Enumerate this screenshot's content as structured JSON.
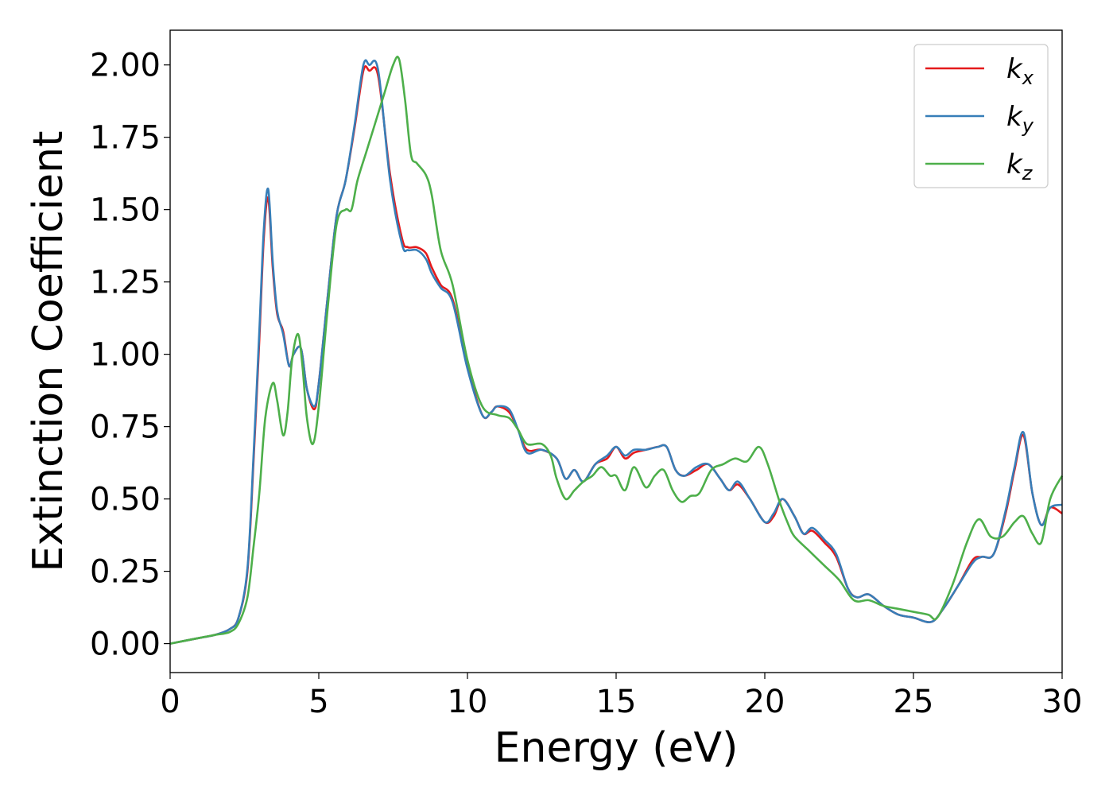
{
  "chart_data": {
    "type": "line",
    "title": "",
    "xlabel": "Energy (eV)",
    "ylabel": "Extinction Coefficient",
    "xlim": [
      0,
      30
    ],
    "ylim": [
      -0.1,
      2.12
    ],
    "xticks": [
      0,
      5,
      10,
      15,
      20,
      25,
      30
    ],
    "yticks": [
      0.0,
      0.25,
      0.5,
      0.75,
      1.0,
      1.25,
      1.5,
      1.75,
      2.0
    ],
    "grid": false,
    "legend_position": "top-right",
    "colors": {
      "kx": "#e41a1c",
      "ky": "#377eb8",
      "kz": "#4daf4a"
    },
    "series": [
      {
        "name": "k_x",
        "label_main": "k",
        "label_sub": "x",
        "x": [
          0,
          1,
          1.5,
          2,
          2.3,
          2.6,
          2.8,
          3.0,
          3.15,
          3.3,
          3.45,
          3.6,
          3.8,
          4.0,
          4.15,
          4.4,
          4.6,
          4.85,
          5.0,
          5.3,
          5.6,
          5.9,
          6.2,
          6.5,
          6.7,
          7.0,
          7.4,
          7.8,
          8.0,
          8.3,
          8.6,
          8.8,
          9.1,
          9.5,
          10.0,
          10.5,
          10.8,
          11.0,
          11.4,
          11.7,
          12.0,
          12.5,
          13.0,
          13.3,
          13.6,
          13.9,
          14.3,
          14.7,
          15.0,
          15.3,
          15.6,
          16.0,
          16.4,
          16.7,
          17.0,
          17.3,
          17.7,
          18.1,
          18.5,
          18.8,
          19.1,
          19.5,
          20.0,
          20.3,
          20.6,
          21.0,
          21.3,
          21.6,
          22.0,
          22.4,
          22.8,
          23.1,
          23.5,
          24.0,
          24.5,
          25.0,
          25.6,
          26.0,
          26.5,
          27.0,
          27.3,
          27.7,
          28.1,
          28.4,
          28.7,
          29.0,
          29.3,
          29.6,
          30.0
        ],
        "y": [
          0.0,
          0.02,
          0.03,
          0.05,
          0.09,
          0.25,
          0.62,
          1.05,
          1.4,
          1.54,
          1.3,
          1.14,
          1.08,
          0.96,
          1.0,
          1.02,
          0.88,
          0.81,
          0.9,
          1.2,
          1.48,
          1.6,
          1.78,
          1.98,
          1.98,
          1.96,
          1.62,
          1.4,
          1.37,
          1.37,
          1.35,
          1.3,
          1.24,
          1.19,
          0.96,
          0.79,
          0.8,
          0.82,
          0.8,
          0.74,
          0.67,
          0.67,
          0.64,
          0.57,
          0.6,
          0.56,
          0.62,
          0.64,
          0.68,
          0.64,
          0.66,
          0.67,
          0.68,
          0.68,
          0.6,
          0.58,
          0.6,
          0.62,
          0.57,
          0.53,
          0.55,
          0.5,
          0.42,
          0.44,
          0.5,
          0.44,
          0.38,
          0.39,
          0.35,
          0.3,
          0.19,
          0.16,
          0.17,
          0.13,
          0.1,
          0.09,
          0.075,
          0.12,
          0.2,
          0.29,
          0.3,
          0.31,
          0.45,
          0.6,
          0.72,
          0.52,
          0.41,
          0.47,
          0.45
        ]
      },
      {
        "name": "k_y",
        "label_main": "k",
        "label_sub": "y",
        "x": [
          0,
          1,
          1.5,
          2,
          2.3,
          2.6,
          2.8,
          3.0,
          3.15,
          3.3,
          3.45,
          3.6,
          3.8,
          4.0,
          4.15,
          4.4,
          4.6,
          4.85,
          5.0,
          5.3,
          5.6,
          5.9,
          6.2,
          6.5,
          6.7,
          7.0,
          7.4,
          7.8,
          8.0,
          8.3,
          8.6,
          8.8,
          9.1,
          9.5,
          10.0,
          10.5,
          10.8,
          11.0,
          11.4,
          11.7,
          12.0,
          12.5,
          13.0,
          13.3,
          13.6,
          13.9,
          14.3,
          14.7,
          15.0,
          15.3,
          15.6,
          16.0,
          16.4,
          16.7,
          17.0,
          17.3,
          17.7,
          18.1,
          18.5,
          18.8,
          19.1,
          19.5,
          20.0,
          20.3,
          20.6,
          21.0,
          21.3,
          21.6,
          22.0,
          22.4,
          22.8,
          23.1,
          23.5,
          24.0,
          24.5,
          25.0,
          25.6,
          26.0,
          26.5,
          27.0,
          27.3,
          27.7,
          28.1,
          28.4,
          28.7,
          29.0,
          29.3,
          29.6,
          30.0
        ],
        "y": [
          0.0,
          0.02,
          0.03,
          0.05,
          0.09,
          0.26,
          0.64,
          1.08,
          1.43,
          1.57,
          1.32,
          1.15,
          1.07,
          0.96,
          1.0,
          1.02,
          0.88,
          0.82,
          0.9,
          1.2,
          1.48,
          1.6,
          1.79,
          2.0,
          2.0,
          1.98,
          1.6,
          1.38,
          1.36,
          1.36,
          1.33,
          1.28,
          1.23,
          1.18,
          0.95,
          0.79,
          0.8,
          0.82,
          0.81,
          0.74,
          0.66,
          0.67,
          0.64,
          0.57,
          0.6,
          0.56,
          0.62,
          0.65,
          0.68,
          0.65,
          0.67,
          0.67,
          0.68,
          0.68,
          0.6,
          0.58,
          0.61,
          0.62,
          0.57,
          0.53,
          0.56,
          0.5,
          0.42,
          0.45,
          0.5,
          0.44,
          0.38,
          0.4,
          0.36,
          0.31,
          0.19,
          0.16,
          0.17,
          0.13,
          0.1,
          0.09,
          0.075,
          0.12,
          0.2,
          0.28,
          0.3,
          0.31,
          0.46,
          0.61,
          0.73,
          0.52,
          0.41,
          0.47,
          0.48
        ]
      },
      {
        "name": "k_z",
        "label_main": "k",
        "label_sub": "z",
        "x": [
          0,
          1,
          1.5,
          2,
          2.3,
          2.6,
          2.8,
          3.0,
          3.2,
          3.45,
          3.6,
          3.8,
          3.95,
          4.1,
          4.3,
          4.45,
          4.6,
          4.8,
          5.0,
          5.3,
          5.6,
          5.9,
          6.1,
          6.3,
          6.6,
          6.9,
          7.2,
          7.5,
          7.7,
          7.9,
          8.1,
          8.3,
          8.6,
          8.8,
          9.1,
          9.5,
          10.0,
          10.5,
          11.0,
          11.4,
          11.7,
          12.0,
          12.5,
          12.8,
          13.0,
          13.3,
          13.6,
          13.9,
          14.2,
          14.5,
          14.8,
          15.0,
          15.3,
          15.6,
          16.0,
          16.3,
          16.6,
          16.9,
          17.2,
          17.5,
          17.8,
          18.2,
          18.6,
          19.0,
          19.4,
          19.8,
          20.1,
          20.5,
          20.8,
          21.0,
          21.5,
          22.0,
          22.5,
          23.0,
          23.5,
          24.0,
          24.5,
          25.0,
          25.5,
          25.8,
          26.3,
          26.8,
          27.2,
          27.6,
          28.0,
          28.4,
          28.7,
          29.0,
          29.3,
          29.6,
          30.0
        ],
        "y": [
          0.0,
          0.02,
          0.03,
          0.04,
          0.07,
          0.16,
          0.33,
          0.52,
          0.78,
          0.9,
          0.84,
          0.72,
          0.8,
          0.98,
          1.07,
          0.96,
          0.78,
          0.69,
          0.82,
          1.16,
          1.45,
          1.5,
          1.5,
          1.6,
          1.7,
          1.8,
          1.9,
          2.0,
          2.02,
          1.88,
          1.69,
          1.66,
          1.62,
          1.55,
          1.36,
          1.24,
          0.98,
          0.82,
          0.79,
          0.78,
          0.74,
          0.69,
          0.69,
          0.65,
          0.57,
          0.5,
          0.53,
          0.56,
          0.58,
          0.61,
          0.58,
          0.58,
          0.53,
          0.61,
          0.54,
          0.58,
          0.6,
          0.53,
          0.49,
          0.51,
          0.52,
          0.6,
          0.62,
          0.64,
          0.63,
          0.68,
          0.62,
          0.49,
          0.41,
          0.37,
          0.32,
          0.27,
          0.22,
          0.15,
          0.15,
          0.13,
          0.12,
          0.11,
          0.1,
          0.09,
          0.2,
          0.35,
          0.43,
          0.37,
          0.37,
          0.42,
          0.44,
          0.38,
          0.35,
          0.5,
          0.58
        ]
      }
    ]
  }
}
